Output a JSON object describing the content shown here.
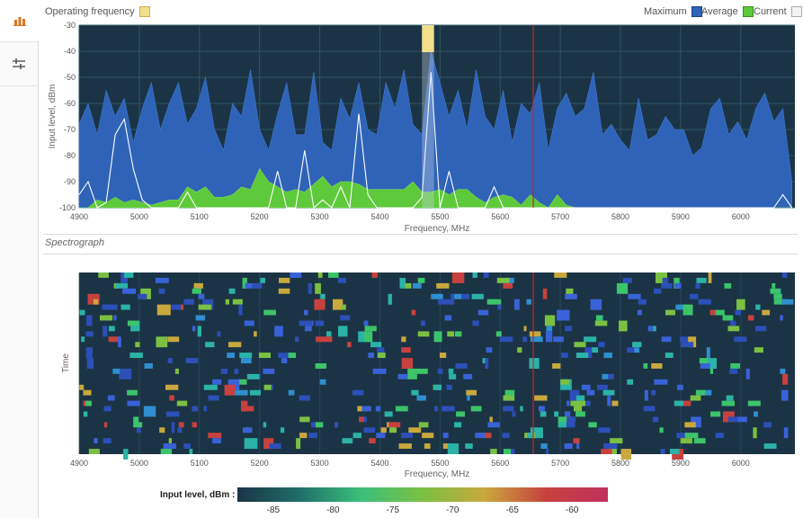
{
  "sidebar": {
    "items": [
      {
        "icon": "spectrum-analyzer-icon"
      },
      {
        "icon": "sliders-icon"
      }
    ]
  },
  "colors": {
    "plot_bg": "#1b3445",
    "grid": "#2e5566",
    "maximum": "#2f63b8",
    "average": "#5ec93a",
    "current": "#ffffff",
    "operating": "#f2df8a",
    "marker": "#c0262d"
  },
  "top_legend": {
    "operating_label": "Operating frequency",
    "maximum_label": "Maximum",
    "average_label": "Average",
    "current_label": "Current"
  },
  "spectrograph_title": "Spectrograph",
  "chart_data": [
    {
      "type": "area",
      "title": "",
      "xlabel": "Frequency, MHz",
      "ylabel": "Input level, dBm",
      "xlim": [
        4900,
        6090
      ],
      "ylim": [
        -100,
        -30
      ],
      "x_ticks": [
        4900,
        5000,
        5100,
        5200,
        5300,
        5400,
        5500,
        5600,
        5700,
        5800,
        5900,
        6000
      ],
      "y_ticks": [
        -30,
        -40,
        -50,
        -60,
        -70,
        -80,
        -90,
        -100
      ],
      "operating_band": [
        5470,
        5490
      ],
      "marker_frequency": 5655,
      "series": [
        {
          "name": "Maximum",
          "x": [
            4900,
            4915,
            4930,
            4945,
            4960,
            4975,
            4990,
            5005,
            5020,
            5035,
            5050,
            5065,
            5080,
            5095,
            5110,
            5125,
            5140,
            5155,
            5170,
            5185,
            5200,
            5215,
            5230,
            5245,
            5260,
            5275,
            5290,
            5305,
            5320,
            5335,
            5350,
            5365,
            5380,
            5395,
            5410,
            5425,
            5440,
            5455,
            5470,
            5485,
            5500,
            5515,
            5530,
            5545,
            5560,
            5575,
            5590,
            5605,
            5620,
            5635,
            5650,
            5665,
            5680,
            5695,
            5710,
            5725,
            5740,
            5755,
            5770,
            5785,
            5800,
            5815,
            5830,
            5845,
            5860,
            5875,
            5890,
            5905,
            5920,
            5935,
            5950,
            5965,
            5980,
            5995,
            6010,
            6025,
            6040,
            6055,
            6070,
            6085
          ],
          "values": [
            -68,
            -60,
            -72,
            -55,
            -65,
            -58,
            -75,
            -62,
            -52,
            -70,
            -60,
            -52,
            -68,
            -62,
            -50,
            -70,
            -78,
            -60,
            -65,
            -47,
            -70,
            -78,
            -64,
            -52,
            -72,
            -72,
            -48,
            -75,
            -78,
            -58,
            -66,
            -52,
            -70,
            -72,
            -52,
            -62,
            -47,
            -68,
            -72,
            -40,
            -52,
            -65,
            -55,
            -70,
            -47,
            -65,
            -70,
            -55,
            -75,
            -60,
            -64,
            -52,
            -78,
            -62,
            -56,
            -65,
            -62,
            -48,
            -72,
            -68,
            -74,
            -78,
            -58,
            -74,
            -72,
            -65,
            -70,
            -70,
            -80,
            -77,
            -62,
            -58,
            -72,
            -67,
            -74,
            -62,
            -56,
            -67,
            -62,
            -90
          ]
        },
        {
          "name": "Average",
          "x": [
            4900,
            4915,
            4930,
            4945,
            4960,
            4975,
            4990,
            5005,
            5020,
            5035,
            5050,
            5065,
            5080,
            5095,
            5110,
            5125,
            5140,
            5155,
            5170,
            5185,
            5200,
            5215,
            5230,
            5245,
            5260,
            5275,
            5290,
            5305,
            5320,
            5335,
            5350,
            5365,
            5380,
            5395,
            5410,
            5425,
            5440,
            5455,
            5470,
            5485,
            5500,
            5515,
            5530,
            5545,
            5560,
            5575,
            5590,
            5605,
            5620,
            5635,
            5650,
            5665,
            5680,
            5695,
            5710,
            5725,
            5740,
            5755,
            5770,
            5785,
            5800,
            5815,
            5830,
            5845,
            5860,
            5875,
            5890,
            5905,
            5920,
            5935,
            5950,
            5965,
            5980,
            5995,
            6010,
            6025,
            6040,
            6055,
            6070,
            6085
          ],
          "values": [
            -100,
            -100,
            -97,
            -98,
            -96,
            -98,
            -97,
            -98,
            -99,
            -98,
            -97,
            -97,
            -92,
            -94,
            -92,
            -96,
            -96,
            -95,
            -92,
            -93,
            -85,
            -90,
            -92,
            -94,
            -93,
            -94,
            -91,
            -88,
            -92,
            -90,
            -90,
            -91,
            -93,
            -93,
            -93,
            -93,
            -93,
            -90,
            -94,
            -94,
            -93,
            -95,
            -93,
            -93,
            -96,
            -98,
            -96,
            -95,
            -96,
            -99,
            -95,
            -98,
            -100,
            -95,
            -99,
            -100,
            -100,
            -100,
            -100,
            -100,
            -100,
            -100,
            -100,
            -100,
            -100,
            -100,
            -100,
            -100,
            -100,
            -100,
            -100,
            -100,
            -100,
            -100,
            -100,
            -100,
            -100,
            -100,
            -100,
            -100
          ]
        },
        {
          "name": "Current",
          "x": [
            4900,
            4915,
            4930,
            4945,
            4960,
            4975,
            4990,
            5005,
            5020,
            5035,
            5050,
            5065,
            5080,
            5095,
            5110,
            5125,
            5140,
            5155,
            5170,
            5185,
            5200,
            5215,
            5230,
            5245,
            5260,
            5275,
            5290,
            5305,
            5320,
            5335,
            5350,
            5365,
            5380,
            5395,
            5410,
            5425,
            5440,
            5455,
            5470,
            5485,
            5500,
            5515,
            5530,
            5545,
            5560,
            5575,
            5590,
            5605,
            5620,
            5635,
            5650,
            5665,
            5680,
            5695,
            5710,
            5725,
            5740,
            5755,
            5770,
            5785,
            5800,
            5815,
            5830,
            5845,
            5860,
            5875,
            5890,
            5905,
            5920,
            5935,
            5950,
            5965,
            5980,
            5995,
            6010,
            6025,
            6040,
            6055,
            6070,
            6085
          ],
          "values": [
            -95,
            -90,
            -100,
            -98,
            -72,
            -66,
            -85,
            -97,
            -100,
            -100,
            -100,
            -100,
            -94,
            -100,
            -100,
            -100,
            -100,
            -100,
            -100,
            -100,
            -100,
            -100,
            -86,
            -100,
            -100,
            -78,
            -100,
            -97,
            -100,
            -92,
            -100,
            -64,
            -95,
            -100,
            -100,
            -100,
            -100,
            -100,
            -96,
            -48,
            -100,
            -86,
            -100,
            -100,
            -100,
            -100,
            -92,
            -100,
            -100,
            -100,
            -100,
            -100,
            -100,
            -100,
            -100,
            -100,
            -100,
            -100,
            -100,
            -100,
            -100,
            -100,
            -100,
            -100,
            -100,
            -100,
            -100,
            -100,
            -100,
            -100,
            -100,
            -100,
            -100,
            -100,
            -100,
            -100,
            -100,
            -100,
            -95,
            -100
          ]
        }
      ]
    },
    {
      "type": "heatmap",
      "title": "Spectrograph",
      "xlabel": "Frequency, MHz",
      "ylabel": "Time",
      "xlim": [
        4900,
        6090
      ],
      "x_ticks": [
        4900,
        5000,
        5100,
        5200,
        5300,
        5400,
        5500,
        5600,
        5700,
        5800,
        5900,
        6000
      ],
      "marker_frequency": 5655,
      "colorbar": {
        "label": "Input level, dBm :",
        "ticks": [
          -85,
          -80,
          -75,
          -70,
          -65,
          -60
        ],
        "range": [
          -88,
          -57
        ],
        "colors": [
          "#1b3445",
          "#1f6e6a",
          "#3bbf7a",
          "#7bc043",
          "#c9a83d",
          "#c8413e",
          "#c2305e"
        ]
      }
    }
  ]
}
